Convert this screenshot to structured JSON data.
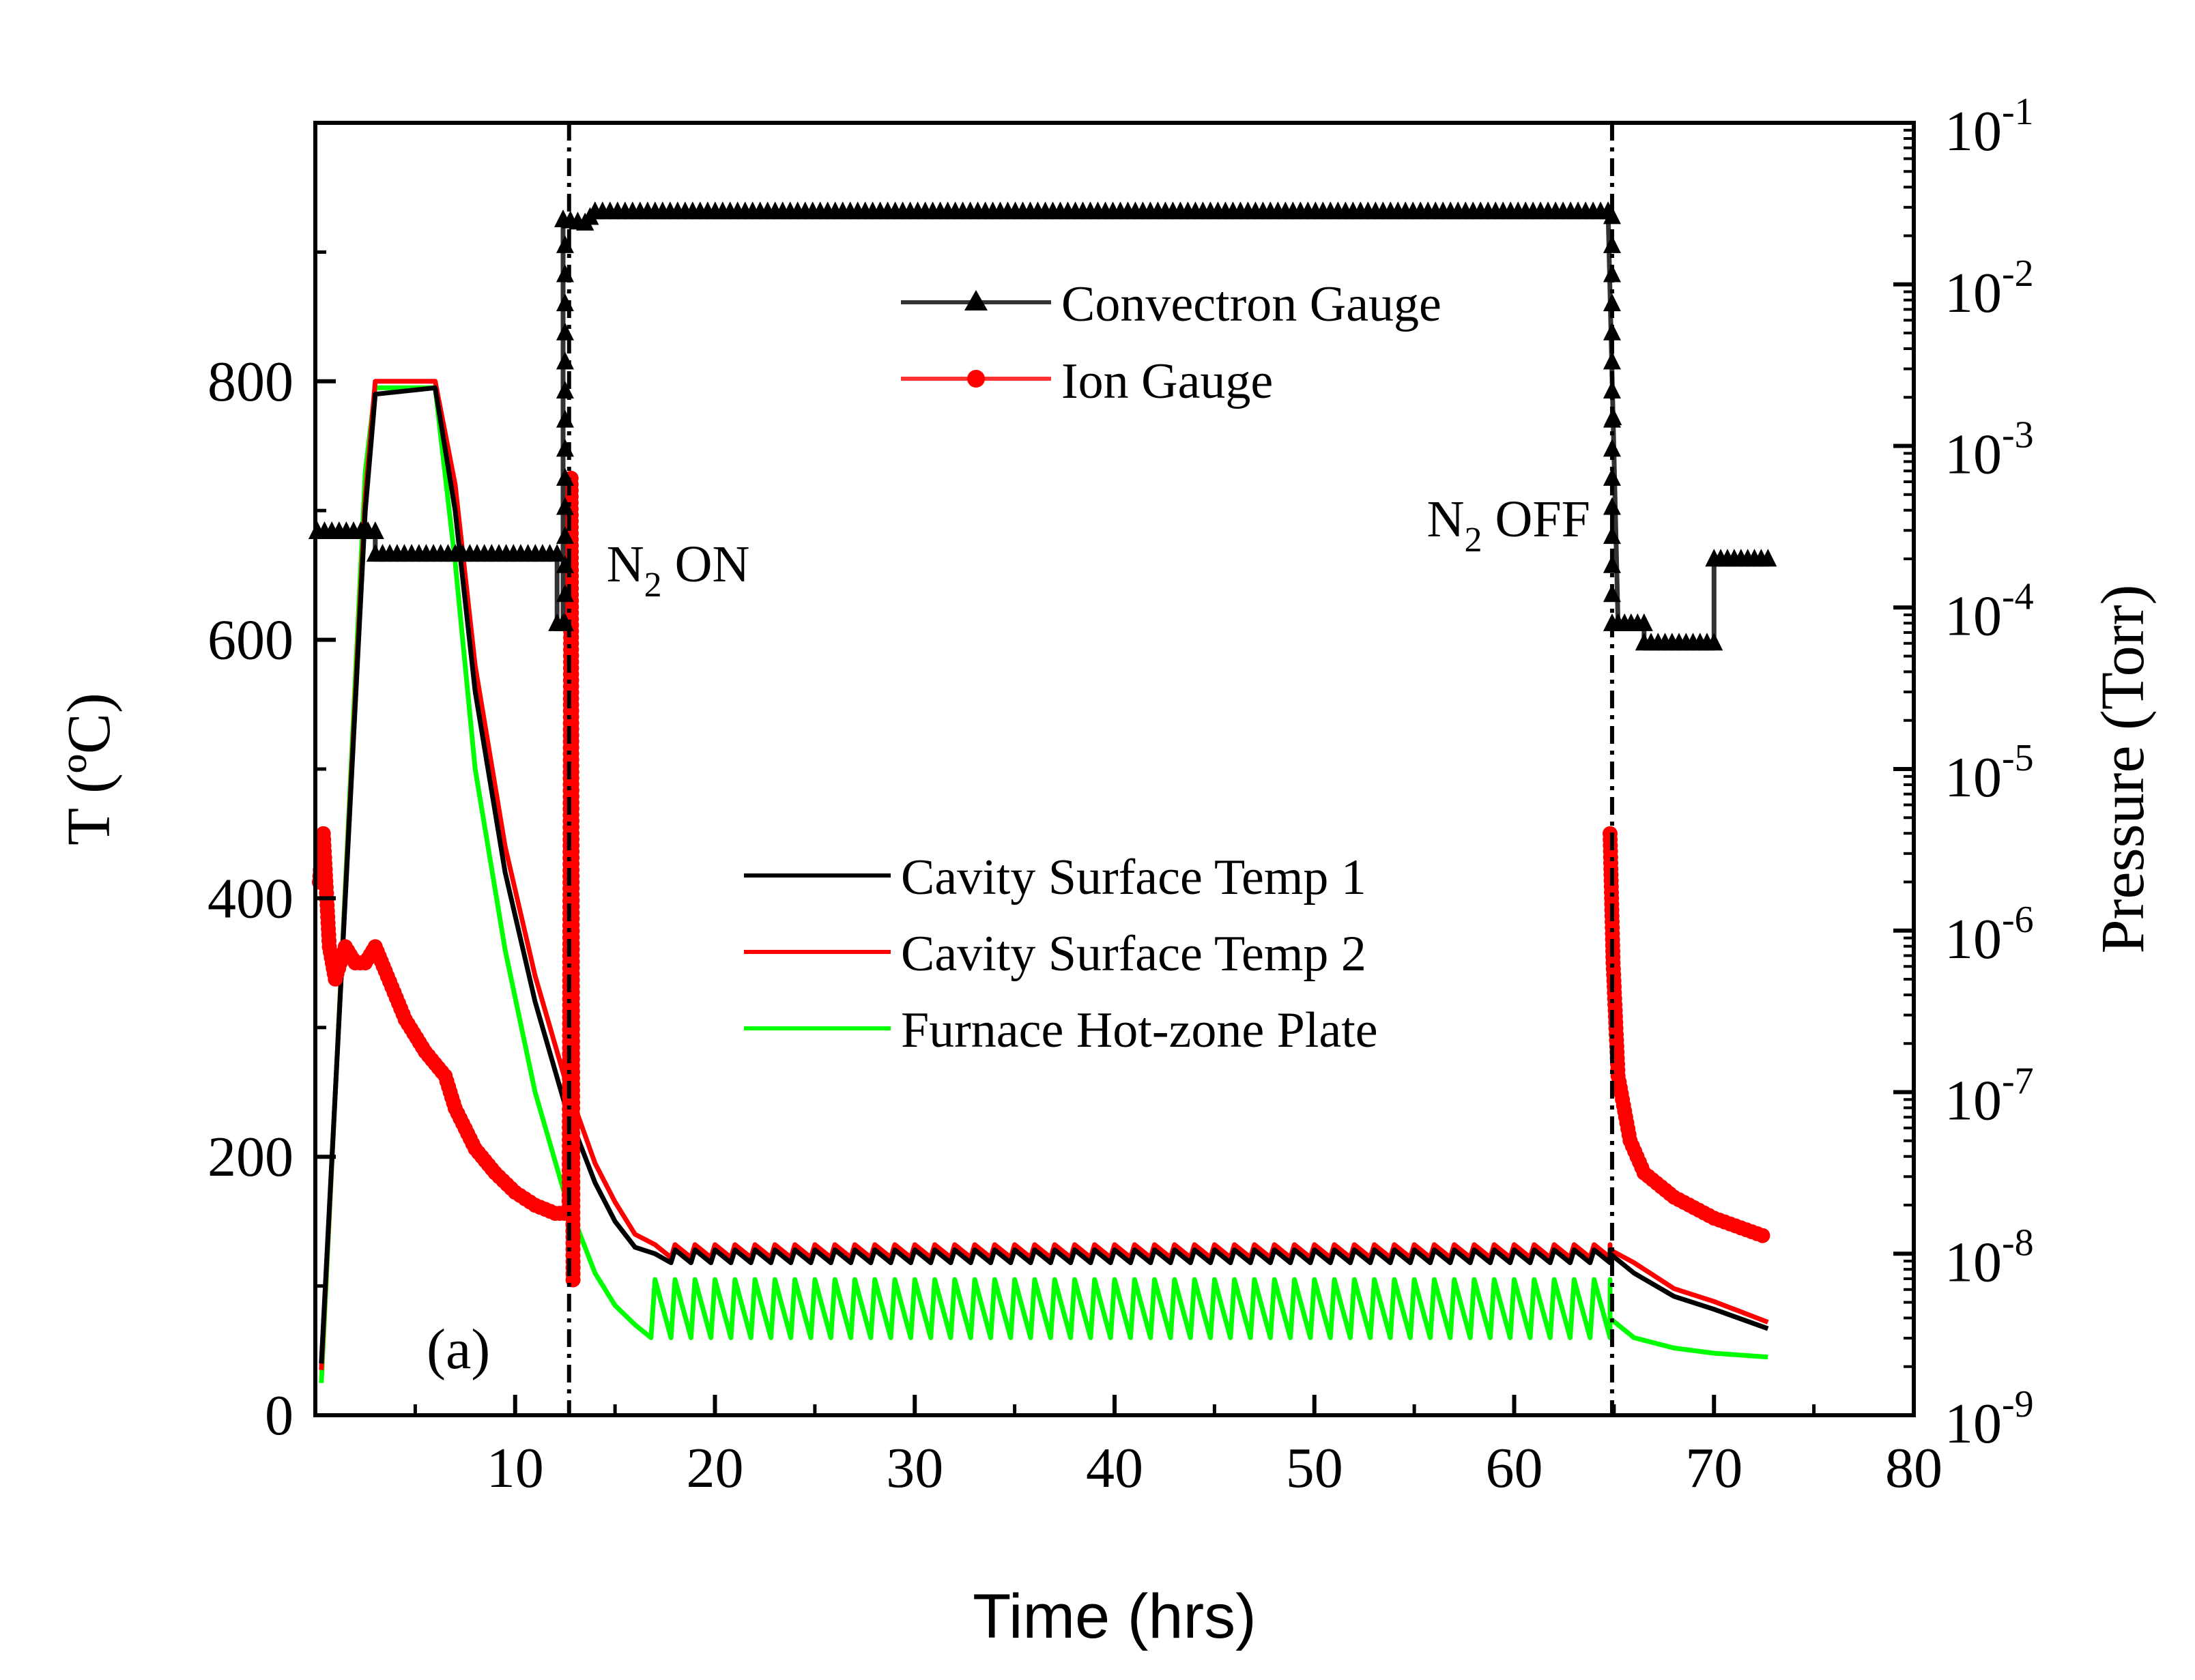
{
  "chart_data": {
    "type": "line",
    "panel_label": "(a)",
    "xlabel": "Time (hrs)",
    "ylabel_left": "T (ºC)",
    "ylabel_right": "Pressure (Torr)",
    "xlim": [
      0,
      80
    ],
    "ylim_left": [
      0,
      1000
    ],
    "ylim_right_log10": [
      -9,
      -1
    ],
    "x_ticks": [
      10,
      20,
      30,
      40,
      50,
      60,
      70,
      80
    ],
    "y_left_ticks": [
      0,
      200,
      400,
      600,
      800
    ],
    "y_right_tick_bases": [
      "10",
      "10",
      "10",
      "10",
      "10",
      "10",
      "10",
      "10",
      "10"
    ],
    "y_right_tick_exponents": [
      "-9",
      "-8",
      "-7",
      "-6",
      "-5",
      "-4",
      "-3",
      "-2",
      "-1"
    ],
    "annotations": [
      {
        "base": "N",
        "sub": "2",
        "rest": " ON",
        "x": 12.7
      },
      {
        "base": "N",
        "sub": "2",
        "rest": " OFF",
        "x": 64.9
      }
    ],
    "vlines_x": [
      12.7,
      64.9
    ],
    "legend_pressure": [
      "Convectron Gauge",
      "Ion Gauge"
    ],
    "legend_temperature": [
      "Cavity Surface Temp 1",
      "Cavity Surface Temp 2",
      "Furnace Hot-zone Plate"
    ],
    "series": [
      {
        "name": "Cavity Surface Temp 1",
        "axis": "left",
        "color": "#000000",
        "points": [
          [
            0.3,
            40
          ],
          [
            2.5,
            700
          ],
          [
            3,
            790
          ],
          [
            6,
            795
          ],
          [
            7,
            700
          ],
          [
            8,
            560
          ],
          [
            9.5,
            420
          ],
          [
            11,
            320
          ],
          [
            12.5,
            240
          ],
          [
            14,
            180
          ],
          [
            15,
            150
          ],
          [
            16,
            130
          ],
          [
            17,
            125
          ]
        ],
        "oscillation": {
          "from": 17,
          "to": 64.8,
          "period": 1.0,
          "low": 118,
          "high": 128
        },
        "tail": [
          [
            64.8,
            125
          ],
          [
            66,
            110
          ],
          [
            68,
            92
          ],
          [
            70,
            82
          ],
          [
            72.7,
            67
          ]
        ]
      },
      {
        "name": "Cavity Surface Temp 2",
        "axis": "left",
        "color": "#ff0000",
        "points": [
          [
            0.3,
            35
          ],
          [
            2.5,
            710
          ],
          [
            3,
            800
          ],
          [
            6,
            800
          ],
          [
            7,
            720
          ],
          [
            8,
            580
          ],
          [
            9.5,
            440
          ],
          [
            11,
            340
          ],
          [
            12.5,
            260
          ],
          [
            14,
            195
          ],
          [
            15,
            165
          ],
          [
            16,
            140
          ],
          [
            17,
            132
          ]
        ],
        "oscillation": {
          "from": 17,
          "to": 64.8,
          "period": 1.0,
          "low": 122,
          "high": 132
        },
        "tail": [
          [
            64.8,
            128
          ],
          [
            66,
            118
          ],
          [
            68,
            98
          ],
          [
            70,
            88
          ],
          [
            72.7,
            72
          ]
        ]
      },
      {
        "name": "Furnace Hot-zone Plate",
        "axis": "left",
        "color": "#00ff00",
        "points": [
          [
            0.3,
            25
          ],
          [
            2.5,
            730
          ],
          [
            3,
            795
          ],
          [
            6,
            795
          ],
          [
            7,
            660
          ],
          [
            8,
            500
          ],
          [
            9.5,
            360
          ],
          [
            11,
            250
          ],
          [
            12.5,
            170
          ],
          [
            14,
            110
          ],
          [
            15,
            85
          ],
          [
            16,
            70
          ]
        ],
        "oscillation": {
          "from": 16,
          "to": 64.8,
          "period": 1.0,
          "low": 60,
          "high": 105
        },
        "tail": [
          [
            64.8,
            75
          ],
          [
            66,
            60
          ],
          [
            68,
            52
          ],
          [
            70,
            48
          ],
          [
            72.7,
            45
          ]
        ]
      },
      {
        "name": "Convectron Gauge",
        "axis": "right_log10",
        "color": "#000000",
        "marker": "triangle",
        "points": [
          [
            0.1,
            -3.53
          ],
          [
            3,
            -3.53
          ],
          [
            3,
            -3.67
          ],
          [
            12.1,
            -3.67
          ],
          [
            12.1,
            -4.1
          ],
          [
            12.4,
            -4.1
          ],
          [
            12.4,
            -1.6
          ],
          [
            13.5,
            -1.62
          ],
          [
            14,
            -1.55
          ],
          [
            64.7,
            -1.55
          ],
          [
            65.2,
            -4.1
          ],
          [
            66.5,
            -4.1
          ],
          [
            66.5,
            -4.22
          ],
          [
            70,
            -4.22
          ],
          [
            70,
            -3.7
          ],
          [
            72.7,
            -3.7
          ]
        ],
        "vertical_markers": [
          {
            "x": 12.5,
            "from": -4.1,
            "to": -1.6
          },
          {
            "x": 64.9,
            "from": -4.1,
            "to": -1.55
          }
        ]
      },
      {
        "name": "Ion Gauge",
        "axis": "right_log10",
        "color": "#ff0000",
        "marker": "circle",
        "points": [
          [
            0.2,
            -5.7
          ],
          [
            0.4,
            -5.4
          ],
          [
            0.7,
            -6.1
          ],
          [
            1,
            -6.3
          ],
          [
            1.5,
            -6.1
          ],
          [
            2,
            -6.2
          ],
          [
            2.5,
            -6.2
          ],
          [
            3,
            -6.1
          ],
          [
            3.5,
            -6.25
          ],
          [
            4.5,
            -6.55
          ],
          [
            5.5,
            -6.75
          ],
          [
            6.5,
            -6.9
          ],
          [
            7,
            -7.1
          ],
          [
            8,
            -7.35
          ],
          [
            9,
            -7.5
          ],
          [
            10,
            -7.62
          ],
          [
            11,
            -7.7
          ],
          [
            12,
            -7.75
          ],
          [
            12.7,
            -7.75
          ],
          [
            12.8,
            -3.2
          ],
          [
            12.9,
            -8.2
          ]
        ],
        "tail_points": [
          [
            64.8,
            -5.4
          ],
          [
            64.95,
            -6.2
          ],
          [
            65.2,
            -6.9
          ],
          [
            65.8,
            -7.3
          ],
          [
            66.5,
            -7.5
          ],
          [
            68,
            -7.65
          ],
          [
            70,
            -7.78
          ],
          [
            72.7,
            -7.9
          ]
        ]
      }
    ]
  }
}
